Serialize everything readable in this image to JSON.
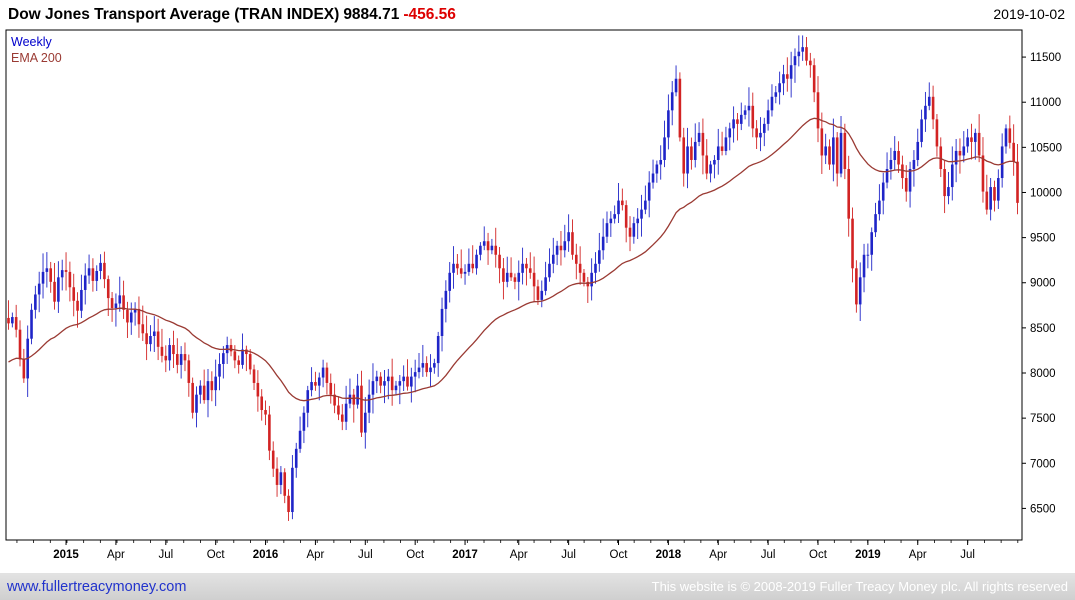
{
  "header": {
    "title": "Dow Jones Transport Average (TRAN INDEX)",
    "price": "9884.71",
    "change": "-456.56",
    "date": "2019-10-02"
  },
  "legend": {
    "series": "Weekly",
    "overlay": "EMA 200"
  },
  "footer": {
    "link": "www.fullertreacymoney.com",
    "copyright": "This website is © 2008-2019 Fuller Treacy Money plc. All rights reserved"
  },
  "colors": {
    "up": "#1f25c8",
    "down": "#d22323",
    "ema": "#9a3a33",
    "weekly_label": "#0000cc",
    "change_negative": "#dd0000",
    "link": "#2233cc",
    "axis": "#000000"
  },
  "chart_data": {
    "type": "candlestick",
    "timeframe": "Weekly",
    "title": "Dow Jones Transport Average (TRAN INDEX)",
    "last_price": 9884.71,
    "change": -456.56,
    "as_of_date": "2019-10-02",
    "ylabel": "",
    "xlabel": "",
    "grid": false,
    "legend_position": "top-left-inside",
    "y_ticks": [
      6500,
      7000,
      7500,
      8000,
      8500,
      9000,
      9500,
      10000,
      10500,
      11000,
      11500
    ],
    "y_range": [
      6150,
      11800
    ],
    "x_labels": [
      {
        "i": 15,
        "label": "2015",
        "year": true
      },
      {
        "i": 28,
        "label": "Apr",
        "year": false
      },
      {
        "i": 41,
        "label": "Jul",
        "year": false
      },
      {
        "i": 54,
        "label": "Oct",
        "year": false
      },
      {
        "i": 67,
        "label": "2016",
        "year": true
      },
      {
        "i": 80,
        "label": "Apr",
        "year": false
      },
      {
        "i": 93,
        "label": "Jul",
        "year": false
      },
      {
        "i": 106,
        "label": "Oct",
        "year": false
      },
      {
        "i": 119,
        "label": "2017",
        "year": true
      },
      {
        "i": 133,
        "label": "Apr",
        "year": false
      },
      {
        "i": 146,
        "label": "Jul",
        "year": false
      },
      {
        "i": 159,
        "label": "Oct",
        "year": false
      },
      {
        "i": 172,
        "label": "2018",
        "year": true
      },
      {
        "i": 185,
        "label": "Apr",
        "year": false
      },
      {
        "i": 198,
        "label": "Jul",
        "year": false
      },
      {
        "i": 211,
        "label": "Oct",
        "year": false
      },
      {
        "i": 224,
        "label": "2019",
        "year": true
      },
      {
        "i": 237,
        "label": "Apr",
        "year": false
      },
      {
        "i": 250,
        "label": "Jul",
        "year": false
      }
    ],
    "weekly_closes": [
      8550,
      8620,
      8480,
      8150,
      7940,
      8380,
      8700,
      8870,
      8990,
      9120,
      9160,
      9010,
      8790,
      9060,
      9140,
      9120,
      8950,
      8800,
      8690,
      8920,
      9080,
      9160,
      9020,
      9130,
      9220,
      9040,
      8830,
      8720,
      8770,
      8860,
      8700,
      8560,
      8670,
      8710,
      8540,
      8440,
      8320,
      8410,
      8460,
      8290,
      8190,
      8140,
      8310,
      8210,
      8090,
      8210,
      8140,
      7890,
      7560,
      7760,
      7860,
      7700,
      7910,
      7810,
      7960,
      8100,
      8220,
      8310,
      8240,
      8140,
      8090,
      8260,
      8210,
      8040,
      7890,
      7740,
      7590,
      7540,
      7140,
      6940,
      6760,
      6900,
      6640,
      6460,
      6950,
      7160,
      7360,
      7560,
      7810,
      7900,
      7860,
      7950,
      8060,
      7890,
      7760,
      7640,
      7540,
      7460,
      7660,
      7760,
      7650,
      7860,
      7340,
      7560,
      7760,
      7910,
      7960,
      7860,
      7910,
      7960,
      7810,
      7860,
      7910,
      7960,
      7850,
      7960,
      8010,
      8060,
      8110,
      8010,
      8060,
      8110,
      8410,
      8710,
      8910,
      9110,
      9210,
      9160,
      9100,
      9120,
      9210,
      9160,
      9310,
      9410,
      9460,
      9360,
      9410,
      9310,
      9160,
      9010,
      9110,
      9060,
      9010,
      9110,
      9210,
      9160,
      9110,
      8960,
      8810,
      8910,
      9060,
      9210,
      9310,
      9410,
      9360,
      9460,
      9560,
      9310,
      9210,
      9110,
      9010,
      8960,
      9110,
      9210,
      9360,
      9510,
      9660,
      9710,
      9760,
      9910,
      9860,
      9610,
      9510,
      9660,
      9710,
      9810,
      9910,
      10110,
      10210,
      10310,
      10360,
      10610,
      10910,
      11110,
      11260,
      10610,
      10210,
      10510,
      10360,
      10560,
      10660,
      10410,
      10210,
      10310,
      10360,
      10510,
      10460,
      10610,
      10710,
      10810,
      10760,
      10860,
      10910,
      10960,
      10710,
      10610,
      10660,
      10760,
      10910,
      11060,
      11110,
      11210,
      11310,
      11260,
      11410,
      11510,
      11560,
      11610,
      11460,
      11410,
      11110,
      10710,
      10410,
      10510,
      10310,
      10610,
      10210,
      10660,
      10260,
      9710,
      9160,
      8760,
      9060,
      9310,
      9310,
      9560,
      9760,
      9910,
      10110,
      10260,
      10360,
      10460,
      10310,
      10160,
      10010,
      10260,
      10360,
      10560,
      10810,
      10960,
      11060,
      10810,
      10510,
      10260,
      9960,
      10060,
      10310,
      10460,
      10410,
      10510,
      10610,
      10560,
      10660,
      10410,
      10010,
      9810,
      10060,
      9910,
      10160,
      10510,
      10710,
      10550,
      10341,
      9884.71
    ],
    "ema": {
      "label": "EMA 200",
      "period_weeks": 40,
      "seed": 8100
    }
  }
}
